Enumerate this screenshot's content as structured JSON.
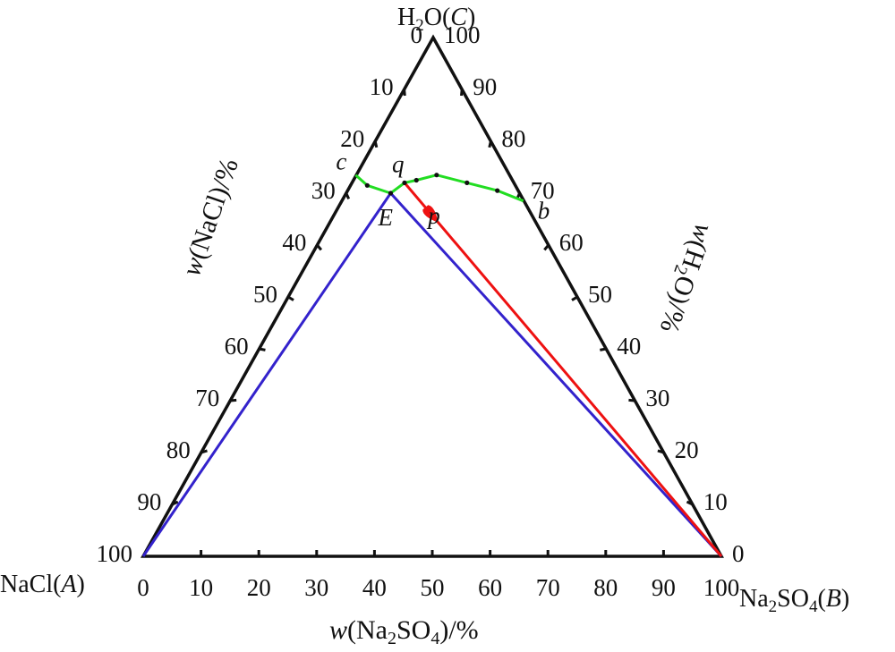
{
  "diagram": {
    "type": "ternary phase diagram",
    "vertices": {
      "A": {
        "main": "NaCl",
        "paren": "A"
      },
      "B": {
        "main": "Na",
        "sub1": "2",
        "mid": "SO",
        "sub2": "4",
        "paren": "B"
      },
      "C": {
        "main": "H",
        "sub1": "2",
        "mid": "O",
        "paren": "C"
      }
    },
    "axes": {
      "bottom": {
        "var": "w",
        "open": "(Na",
        "sub1": "2",
        "mid": "SO",
        "sub2": "4",
        "close": ")/%"
      },
      "left": {
        "var": "w",
        "rest": "(NaCl)/%"
      },
      "right": {
        "var": "w",
        "open": "(H",
        "sub1": "2",
        "close": "O)/%"
      }
    },
    "ticks": {
      "bottom": [
        "0",
        "10",
        "20",
        "30",
        "40",
        "50",
        "60",
        "70",
        "80",
        "90",
        "100"
      ],
      "left": [
        "100",
        "90",
        "80",
        "70",
        "60",
        "50",
        "40",
        "30",
        "20",
        "10",
        "0"
      ],
      "right": [
        "0",
        "10",
        "20",
        "30",
        "40",
        "50",
        "60",
        "70",
        "80",
        "90",
        "100"
      ]
    },
    "points": {
      "c": {
        "label": "c",
        "Na2SO4": 0,
        "H2O": 73.5
      },
      "E": {
        "label": "E",
        "Na2SO4": 7.8,
        "H2O": 70.0
      },
      "q": {
        "label": "q",
        "Na2SO4": 9.2,
        "H2O": 72.0
      },
      "p": {
        "label": "p",
        "Na2SO4": 16.2,
        "H2O": 65.5
      },
      "b": {
        "label": "b",
        "Na2SO4": 31.5,
        "H2O": 68.5
      }
    },
    "curves": {
      "solubility_curve": {
        "color": "#22dd22",
        "points": [
          [
            0,
            73.5
          ],
          [
            3,
            71.5
          ],
          [
            7.8,
            70.0
          ],
          [
            9.2,
            72.0
          ],
          [
            11,
            72.5
          ],
          [
            14,
            73.5
          ],
          [
            20,
            72.0
          ],
          [
            26,
            70.5
          ],
          [
            31.5,
            68.5
          ]
        ]
      },
      "tie_line_E_A": {
        "color": "#3322cc"
      },
      "tie_line_E_B": {
        "color": "#3322cc"
      },
      "tie_line_q_B": {
        "color": "#ee1111"
      }
    },
    "colors": {
      "frame": "#111111",
      "marker": "#111111",
      "arrow": "#ee1111"
    }
  }
}
